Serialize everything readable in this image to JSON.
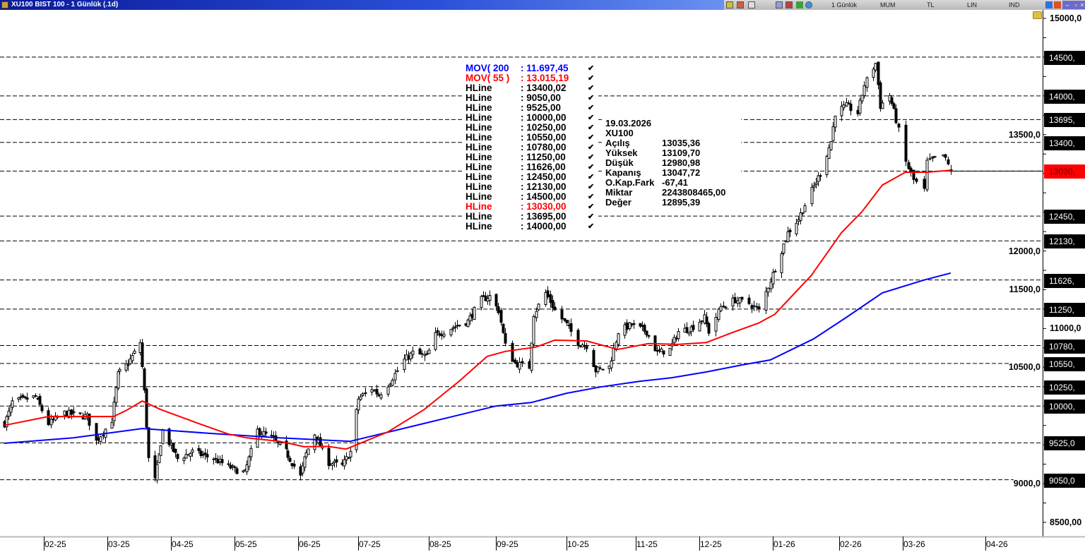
{
  "window": {
    "title": "XU100 BIST 100 - 1 Günlük (.1d)",
    "toolbar": [
      "1 Günlük",
      "MUM",
      "TL",
      "LIN",
      "IND"
    ],
    "controls": [
      "minimize",
      "restore",
      "close"
    ]
  },
  "legend": [
    {
      "name": "MOV( 200",
      "value": ": 11.697,45",
      "color": "#0000ff"
    },
    {
      "name": "MOV( 55 )",
      "value": ": 13.015,19",
      "color": "#ff0000"
    },
    {
      "name": "HLine",
      "value": ": 13400,02",
      "color": "#000000"
    },
    {
      "name": "HLine",
      "value": ": 9050,00",
      "color": "#000000"
    },
    {
      "name": "HLine",
      "value": ": 9525,00",
      "color": "#000000"
    },
    {
      "name": "HLine",
      "value": ": 10000,00",
      "color": "#000000"
    },
    {
      "name": "HLine",
      "value": ": 10250,00",
      "color": "#000000"
    },
    {
      "name": "HLine",
      "value": ": 10550,00",
      "color": "#000000"
    },
    {
      "name": "HLine",
      "value": ": 10780,00",
      "color": "#000000"
    },
    {
      "name": "HLine",
      "value": ": 11250,00",
      "color": "#000000"
    },
    {
      "name": "HLine",
      "value": ": 11626,00",
      "color": "#000000"
    },
    {
      "name": "HLine",
      "value": ": 12450,00",
      "color": "#000000"
    },
    {
      "name": "HLine",
      "value": ": 12130,00",
      "color": "#000000"
    },
    {
      "name": "HLine",
      "value": ": 14500,00",
      "color": "#000000"
    },
    {
      "name": "HLine",
      "value": ": 13030,00",
      "color": "#ff0000"
    },
    {
      "name": "HLine",
      "value": ": 13695,00",
      "color": "#000000"
    },
    {
      "name": "HLine",
      "value": ": 14000,00",
      "color": "#000000"
    }
  ],
  "info": {
    "date": "19.03.2026",
    "symbol": "XU100",
    "rows": [
      {
        "k": "Açılış",
        "v": "13035,36"
      },
      {
        "k": "Yüksek",
        "v": "13109,70"
      },
      {
        "k": "Düşük",
        "v": "12980,98"
      },
      {
        "k": "Kapanış",
        "v": "13047,72"
      },
      {
        "k": "O.Kap.Fark",
        "v": "-67,41"
      },
      {
        "k": "Miktar",
        "v": "2243808465,00"
      },
      {
        "k": "Değer",
        "v": "12895,39"
      }
    ]
  },
  "chart_data": {
    "type": "candlestick",
    "ylim": [
      8350,
      15100
    ],
    "yticks": [
      "15000,0",
      "13500,0",
      "12000,0",
      "11500,0",
      "11000,0",
      "10500,0",
      "9000,0",
      "8500,00"
    ],
    "ytick_values": [
      15000,
      13500,
      12000,
      11500,
      11000,
      10500,
      9000,
      8500
    ],
    "hline_labels": [
      {
        "value": 14500,
        "label": "14500,"
      },
      {
        "value": 14000,
        "label": "14000,"
      },
      {
        "value": 13695,
        "label": "13695,"
      },
      {
        "value": 13400,
        "label": "13400,"
      },
      {
        "value": 13030,
        "label": "13030,",
        "color": "#ff0000"
      },
      {
        "value": 12450,
        "label": "12450,"
      },
      {
        "value": 12130,
        "label": "12130,"
      },
      {
        "value": 11626,
        "label": "11626,"
      },
      {
        "value": 11250,
        "label": "11250,"
      },
      {
        "value": 10780,
        "label": "10780,"
      },
      {
        "value": 10550,
        "label": "10550,"
      },
      {
        "value": 10250,
        "label": "10250,"
      },
      {
        "value": 10000,
        "label": "10000,"
      },
      {
        "value": 9525,
        "label": "9525,0"
      },
      {
        "value": 9050,
        "label": "9050,0"
      }
    ],
    "xticks": [
      "02-25",
      "03-25",
      "04-25",
      "05-25",
      "06-25",
      "07-25",
      "08-25",
      "09-25",
      "10-25",
      "11-25",
      "12-25",
      "01-26",
      "02-26",
      "03-26",
      "04-26"
    ],
    "price_close_approx": [
      [
        "2025-01-13",
        9775
      ],
      [
        "2025-01-17",
        10050
      ],
      [
        "2025-01-28",
        10120
      ],
      [
        "2025-02-03",
        9775
      ],
      [
        "2025-02-10",
        9910
      ],
      [
        "2025-02-20",
        9865
      ],
      [
        "2025-02-24",
        9547
      ],
      [
        "2025-03-03",
        9820
      ],
      [
        "2025-03-06",
        10410
      ],
      [
        "2025-03-11",
        10550
      ],
      [
        "2025-03-17",
        10820
      ],
      [
        "2025-03-19",
        10185
      ],
      [
        "2025-03-21",
        9320
      ],
      [
        "2025-03-24",
        9045
      ],
      [
        "2025-03-28",
        9685
      ],
      [
        "2025-04-04",
        9320
      ],
      [
        "2025-04-11",
        9410
      ],
      [
        "2025-04-21",
        9320
      ],
      [
        "2025-05-01",
        9180
      ],
      [
        "2025-05-06",
        9140
      ],
      [
        "2025-05-12",
        9685
      ],
      [
        "2025-05-19",
        9590
      ],
      [
        "2025-05-26",
        9410
      ],
      [
        "2025-06-02",
        9090
      ],
      [
        "2025-06-04",
        9320
      ],
      [
        "2025-06-09",
        9640
      ],
      [
        "2025-06-16",
        9275
      ],
      [
        "2025-06-23",
        9230
      ],
      [
        "2025-06-27",
        9410
      ],
      [
        "2025-07-01",
        10095
      ],
      [
        "2025-07-07",
        10230
      ],
      [
        "2025-07-10",
        10140
      ],
      [
        "2025-07-15",
        10320
      ],
      [
        "2025-07-21",
        10595
      ],
      [
        "2025-07-25",
        10685
      ],
      [
        "2025-07-31",
        10640
      ],
      [
        "2025-08-04",
        10915
      ],
      [
        "2025-08-11",
        11005
      ],
      [
        "2025-08-19",
        11095
      ],
      [
        "2025-08-25",
        11370
      ],
      [
        "2025-08-29",
        11415
      ],
      [
        "2025-09-02",
        11235
      ],
      [
        "2025-09-05",
        10780
      ],
      [
        "2025-09-09",
        10550
      ],
      [
        "2025-09-15",
        10505
      ],
      [
        "2025-09-17",
        11190
      ],
      [
        "2025-09-22",
        11460
      ],
      [
        "2025-09-26",
        11235
      ],
      [
        "2025-10-01",
        11050
      ],
      [
        "2025-10-06",
        10820
      ],
      [
        "2025-10-10",
        10780
      ],
      [
        "2025-10-14",
        10460
      ],
      [
        "2025-10-20",
        10505
      ],
      [
        "2025-10-24",
        10960
      ],
      [
        "2025-10-30",
        11050
      ],
      [
        "2025-11-06",
        10960
      ],
      [
        "2025-11-11",
        10685
      ],
      [
        "2025-11-17",
        10730
      ],
      [
        "2025-11-21",
        10960
      ],
      [
        "2025-11-27",
        11005
      ],
      [
        "2025-12-03",
        11140
      ],
      [
        "2025-12-05",
        10960
      ],
      [
        "2025-12-10",
        11280
      ],
      [
        "2025-12-16",
        11370
      ],
      [
        "2025-12-22",
        11325
      ],
      [
        "2025-12-26",
        11235
      ],
      [
        "2026-01-02",
        11780
      ],
      [
        "2026-01-08",
        12235
      ],
      [
        "2026-01-13",
        12415
      ],
      [
        "2026-01-19",
        12780
      ],
      [
        "2026-01-23",
        13005
      ],
      [
        "2026-01-28",
        13415
      ],
      [
        "2026-01-30",
        13780
      ],
      [
        "2026-02-04",
        13870
      ],
      [
        "2026-02-09",
        13780
      ],
      [
        "2026-02-12",
        14145
      ],
      [
        "2026-02-17",
        14420
      ],
      [
        "2026-02-19",
        13870
      ],
      [
        "2026-02-23",
        14010
      ],
      [
        "2026-02-26",
        13690
      ],
      [
        "2026-03-02",
        13145
      ],
      [
        "2026-03-05",
        12915
      ],
      [
        "2026-03-09",
        12780
      ],
      [
        "2026-03-10",
        13145
      ],
      [
        "2026-03-13",
        13190
      ],
      [
        "2026-03-16",
        13235
      ],
      [
        "2026-03-19",
        13048
      ]
    ],
    "series": [
      {
        "name": "MOV( 200",
        "color": "#0000ff",
        "points": [
          [
            "2025-01-13",
            9520
          ],
          [
            "2025-02-14",
            9590
          ],
          [
            "2025-03-18",
            9710
          ],
          [
            "2025-04-21",
            9645
          ],
          [
            "2025-05-23",
            9590
          ],
          [
            "2025-06-27",
            9545
          ],
          [
            "2025-07-30",
            9775
          ],
          [
            "2025-09-01",
            10000
          ],
          [
            "2025-09-16",
            10045
          ],
          [
            "2025-10-01",
            10165
          ],
          [
            "2025-10-16",
            10245
          ],
          [
            "2025-11-03",
            10320
          ],
          [
            "2025-11-18",
            10365
          ],
          [
            "2025-12-04",
            10440
          ],
          [
            "2025-12-19",
            10530
          ],
          [
            "2025-12-31",
            10595
          ],
          [
            "2026-01-20",
            10865
          ],
          [
            "2026-02-04",
            11140
          ],
          [
            "2026-02-20",
            11460
          ],
          [
            "2026-03-09",
            11625
          ],
          [
            "2026-03-19",
            11715
          ]
        ]
      },
      {
        "name": "MOV( 55 )",
        "color": "#ff0000",
        "points": [
          [
            "2025-01-13",
            9750
          ],
          [
            "2025-02-03",
            9865
          ],
          [
            "2025-02-19",
            9865
          ],
          [
            "2025-03-04",
            9865
          ],
          [
            "2025-03-10",
            9940
          ],
          [
            "2025-03-18",
            10065
          ],
          [
            "2025-03-27",
            9955
          ],
          [
            "2025-04-14",
            9775
          ],
          [
            "2025-04-28",
            9640
          ],
          [
            "2025-05-07",
            9590
          ],
          [
            "2025-05-23",
            9545
          ],
          [
            "2025-06-04",
            9475
          ],
          [
            "2025-06-16",
            9480
          ],
          [
            "2025-06-25",
            9445
          ],
          [
            "2025-07-04",
            9545
          ],
          [
            "2025-07-14",
            9665
          ],
          [
            "2025-07-30",
            9955
          ],
          [
            "2025-08-15",
            10320
          ],
          [
            "2025-08-28",
            10640
          ],
          [
            "2025-09-05",
            10705
          ],
          [
            "2025-09-18",
            10760
          ],
          [
            "2025-09-26",
            10850
          ],
          [
            "2025-10-10",
            10840
          ],
          [
            "2025-10-20",
            10760
          ],
          [
            "2025-10-24",
            10730
          ],
          [
            "2025-11-07",
            10805
          ],
          [
            "2025-11-21",
            10795
          ],
          [
            "2025-12-04",
            10820
          ],
          [
            "2025-12-16",
            10960
          ],
          [
            "2025-12-26",
            11070
          ],
          [
            "2026-01-02",
            11185
          ],
          [
            "2026-01-19",
            11685
          ],
          [
            "2026-02-02",
            12235
          ],
          [
            "2026-02-11",
            12505
          ],
          [
            "2026-02-20",
            12850
          ],
          [
            "2026-03-02",
            13015
          ],
          [
            "2026-03-10",
            13015
          ],
          [
            "2026-03-19",
            13040
          ]
        ]
      }
    ],
    "last_price_line": 13030,
    "grid": false
  }
}
